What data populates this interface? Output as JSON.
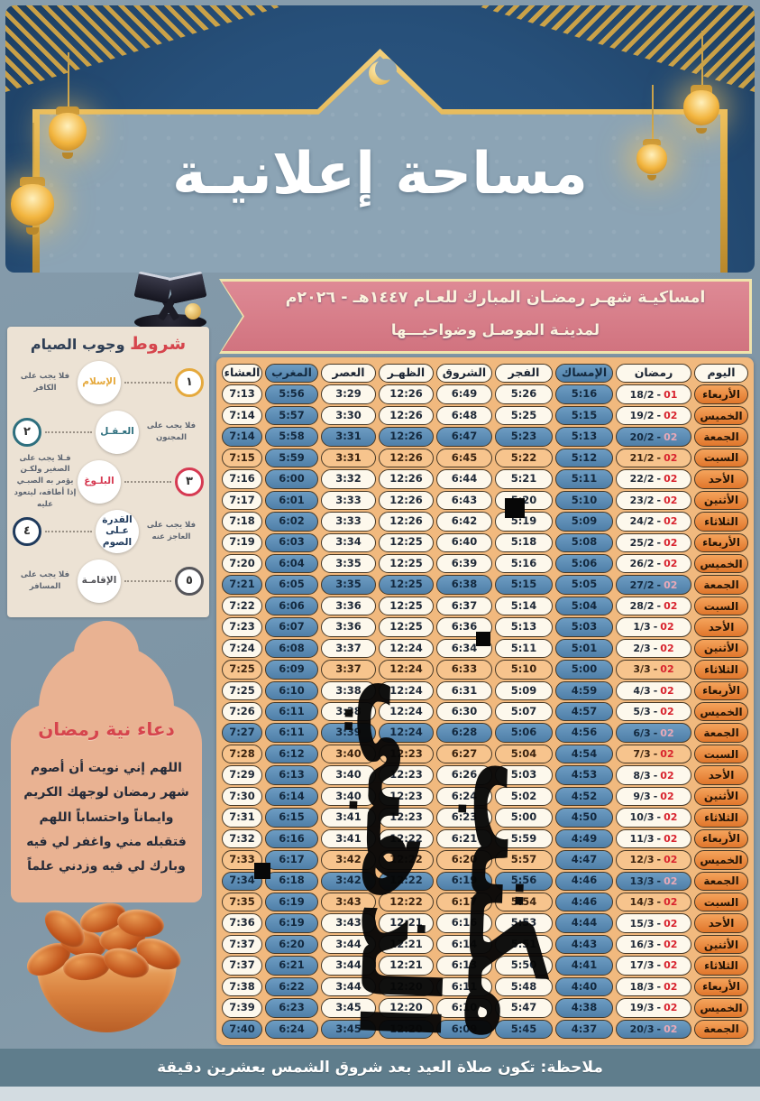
{
  "colors": {
    "navy": "#27507a",
    "gold": "#ddab43",
    "panel": "#8ca4b5",
    "pink": "#d9818d",
    "pink_border": "#efe3ac",
    "table_bg": "#f1b97e",
    "pill_cream": "#fdf8ec",
    "pill_blue": "#5d8eb7",
    "pill_orange": "#f7c48d",
    "day_orange": "#e8873c",
    "red": "#d8232e",
    "sidebar_bg": "#ece2d4",
    "dome": "#e9b292",
    "footer": "#5f7d8c"
  },
  "top_banner": {
    "title": "مساحة إعلانيـة"
  },
  "title_banner": {
    "line1": "امساكيـة شهـر رمضـان المبارك للعـام ١٤٤٧هـ - ٢٠٢٦م",
    "line2": "لمدينـة الموصـل وضواحيـــها"
  },
  "table": {
    "headers": [
      "اليوم",
      "رمضان",
      "الإمساك",
      "الفجر",
      "الشروق",
      "الظهـر",
      "العصر",
      "المغرب",
      "العشاء"
    ],
    "rows": [
      {
        "day": "الأربعاء",
        "date": "18/2",
        "num": "01",
        "t": [
          "5:16",
          "5:26",
          "6:49",
          "12:26",
          "3:29",
          "5:56",
          "7:13"
        ],
        "tint": "cream"
      },
      {
        "day": "الخميس",
        "date": "19/2",
        "num": "02",
        "t": [
          "5:15",
          "5:25",
          "6:48",
          "12:26",
          "3:30",
          "5:57",
          "7:14"
        ],
        "tint": "cream"
      },
      {
        "day": "الجمعة",
        "date": "20/2",
        "num": "02",
        "t": [
          "5:13",
          "5:23",
          "6:47",
          "12:26",
          "3:31",
          "5:58",
          "7:14"
        ],
        "tint": "blue"
      },
      {
        "day": "السبت",
        "date": "21/2",
        "num": "02",
        "t": [
          "5:12",
          "5:22",
          "6:45",
          "12:26",
          "3:31",
          "5:59",
          "7:15"
        ],
        "tint": "orange"
      },
      {
        "day": "الأحد",
        "date": "22/2",
        "num": "02",
        "t": [
          "5:11",
          "5:21",
          "6:44",
          "12:26",
          "3:32",
          "6:00",
          "7:16"
        ],
        "tint": "cream"
      },
      {
        "day": "الأثنين",
        "date": "23/2",
        "num": "02",
        "t": [
          "5:10",
          "5:20",
          "6:43",
          "12:26",
          "3:33",
          "6:01",
          "7:17"
        ],
        "tint": "cream"
      },
      {
        "day": "الثلاثاء",
        "date": "24/2",
        "num": "02",
        "t": [
          "5:09",
          "5:19",
          "6:42",
          "12:26",
          "3:33",
          "6:02",
          "7:18"
        ],
        "tint": "cream"
      },
      {
        "day": "الأربعاء",
        "date": "25/2",
        "num": "02",
        "t": [
          "5:08",
          "5:18",
          "6:40",
          "12:25",
          "3:34",
          "6:03",
          "7:19"
        ],
        "tint": "cream"
      },
      {
        "day": "الخميس",
        "date": "26/2",
        "num": "02",
        "t": [
          "5:06",
          "5:16",
          "6:39",
          "12:25",
          "3:35",
          "6:04",
          "7:20"
        ],
        "tint": "cream"
      },
      {
        "day": "الجمعة",
        "date": "27/2",
        "num": "02",
        "t": [
          "5:05",
          "5:15",
          "6:38",
          "12:25",
          "3:35",
          "6:05",
          "7:21"
        ],
        "tint": "blue"
      },
      {
        "day": "السبت",
        "date": "28/2",
        "num": "02",
        "t": [
          "5:04",
          "5:14",
          "6:37",
          "12:25",
          "3:36",
          "6:06",
          "7:22"
        ],
        "tint": "cream"
      },
      {
        "day": "الأحد",
        "date": "1/3",
        "num": "02",
        "t": [
          "5:03",
          "5:13",
          "6:36",
          "12:25",
          "3:36",
          "6:07",
          "7:23"
        ],
        "tint": "cream"
      },
      {
        "day": "الأثنين",
        "date": "2/3",
        "num": "02",
        "t": [
          "5:01",
          "5:11",
          "6:34",
          "12:24",
          "3:37",
          "6:08",
          "7:24"
        ],
        "tint": "cream"
      },
      {
        "day": "الثلاثاء",
        "date": "3/3",
        "num": "02",
        "t": [
          "5:00",
          "5:10",
          "6:33",
          "12:24",
          "3:37",
          "6:09",
          "7:25"
        ],
        "tint": "orange"
      },
      {
        "day": "الأربعاء",
        "date": "4/3",
        "num": "02",
        "t": [
          "4:59",
          "5:09",
          "6:31",
          "12:24",
          "3:38",
          "6:10",
          "7:25"
        ],
        "tint": "cream"
      },
      {
        "day": "الخميس",
        "date": "5/3",
        "num": "02",
        "t": [
          "4:57",
          "5:07",
          "6:30",
          "12:24",
          "3:38",
          "6:11",
          "7:26"
        ],
        "tint": "cream"
      },
      {
        "day": "الجمعة",
        "date": "6/3",
        "num": "02",
        "t": [
          "4:56",
          "5:06",
          "6:28",
          "12:24",
          "3:39",
          "6:11",
          "7:27"
        ],
        "tint": "blue"
      },
      {
        "day": "السبت",
        "date": "7/3",
        "num": "02",
        "t": [
          "4:54",
          "5:04",
          "6:27",
          "12:23",
          "3:40",
          "6:12",
          "7:28"
        ],
        "tint": "orange"
      },
      {
        "day": "الأحد",
        "date": "8/3",
        "num": "02",
        "t": [
          "4:53",
          "5:03",
          "6:26",
          "12:23",
          "3:40",
          "6:13",
          "7:29"
        ],
        "tint": "cream"
      },
      {
        "day": "الأثنين",
        "date": "9/3",
        "num": "02",
        "t": [
          "4:52",
          "5:02",
          "6:24",
          "12:23",
          "3:40",
          "6:14",
          "7:30"
        ],
        "tint": "cream"
      },
      {
        "day": "الثلاثاء",
        "date": "10/3",
        "num": "02",
        "t": [
          "4:50",
          "5:00",
          "6:23",
          "12:23",
          "3:41",
          "6:15",
          "7:31"
        ],
        "tint": "cream"
      },
      {
        "day": "الأربعاء",
        "date": "11/3",
        "num": "02",
        "t": [
          "4:49",
          "5:59",
          "6:21",
          "12:22",
          "3:41",
          "6:16",
          "7:32"
        ],
        "tint": "cream"
      },
      {
        "day": "الخميس",
        "date": "12/3",
        "num": "02",
        "t": [
          "4:47",
          "5:57",
          "6:20",
          "12:22",
          "3:42",
          "6:17",
          "7:33"
        ],
        "tint": "orange"
      },
      {
        "day": "الجمعة",
        "date": "13/3",
        "num": "02",
        "t": [
          "4:46",
          "5:56",
          "6:19",
          "12:22",
          "3:42",
          "6:18",
          "7:34"
        ],
        "tint": "blue"
      },
      {
        "day": "السبت",
        "date": "14/3",
        "num": "02",
        "t": [
          "4:46",
          "5:54",
          "6:17",
          "12:22",
          "3:43",
          "6:19",
          "7:35"
        ],
        "tint": "orange"
      },
      {
        "day": "الأحد",
        "date": "15/3",
        "num": "02",
        "t": [
          "4:44",
          "5:53",
          "6:16",
          "12:21",
          "3:43",
          "6:19",
          "7:36"
        ],
        "tint": "cream"
      },
      {
        "day": "الأثنين",
        "date": "16/3",
        "num": "02",
        "t": [
          "4:43",
          "5:51",
          "6:14",
          "12:21",
          "3:44",
          "6:20",
          "7:37"
        ],
        "tint": "cream"
      },
      {
        "day": "الثلاثاء",
        "date": "17/3",
        "num": "02",
        "t": [
          "4:41",
          "5:50",
          "6:13",
          "12:21",
          "3:44",
          "6:21",
          "7:37"
        ],
        "tint": "cream"
      },
      {
        "day": "الأربعاء",
        "date": "18/3",
        "num": "02",
        "t": [
          "4:40",
          "5:48",
          "6:11",
          "12:20",
          "3:44",
          "6:22",
          "7:38"
        ],
        "tint": "cream"
      },
      {
        "day": "الخميس",
        "date": "19/3",
        "num": "02",
        "t": [
          "4:38",
          "5:47",
          "6:10",
          "12:20",
          "3:45",
          "6:23",
          "7:39"
        ],
        "tint": "cream"
      },
      {
        "day": "الجمعة",
        "date": "20/3",
        "num": "02",
        "t": [
          "4:37",
          "5:45",
          "6:09",
          "12:20",
          "3:45",
          "6:24",
          "7:40"
        ],
        "tint": "blue"
      }
    ]
  },
  "sidebar": {
    "title_red": "شروط",
    "title_rest": " وجوب الصيام",
    "items": [
      {
        "num": "١",
        "label": "الإسلام",
        "desc": "فلا يجب على الكافر",
        "color": "#e5a93d",
        "side": "right"
      },
      {
        "num": "٢",
        "label": "العـقـل",
        "desc": "فلا يجب على المجنون",
        "color": "#2e6f7e",
        "side": "left"
      },
      {
        "num": "٣",
        "label": "البلـوغ",
        "desc": "فـلا يجب على الصغير ولكـن يؤمر به الصبـي إذا أطاقه، ليتعود عليه",
        "color": "#d63a52",
        "side": "right"
      },
      {
        "num": "٤",
        "label": "القدرة عـلى الصوم",
        "desc": "فلا يجب على العاجز عنه",
        "color": "#1f3a5c",
        "side": "left"
      },
      {
        "num": "٥",
        "label": "الإقامـة",
        "desc": "فلا يجب على المسافر",
        "color": "#55555a",
        "side": "right"
      }
    ]
  },
  "dua": {
    "title": "دعاء نية رمضان",
    "text": "اللهم إني نويت أن أصوم شهر رمضان لوجهك الكريم وايماناً واحتساباً اللهم فتقبله مني واغفر لي فيه وبارك لي فيه وزدني علماً"
  },
  "watermark_text": "مكتب الذهبي",
  "footer_note": "ملاحظة: تكون صلاة العيد بعد شروق الشمس بعشرين دقيقة"
}
